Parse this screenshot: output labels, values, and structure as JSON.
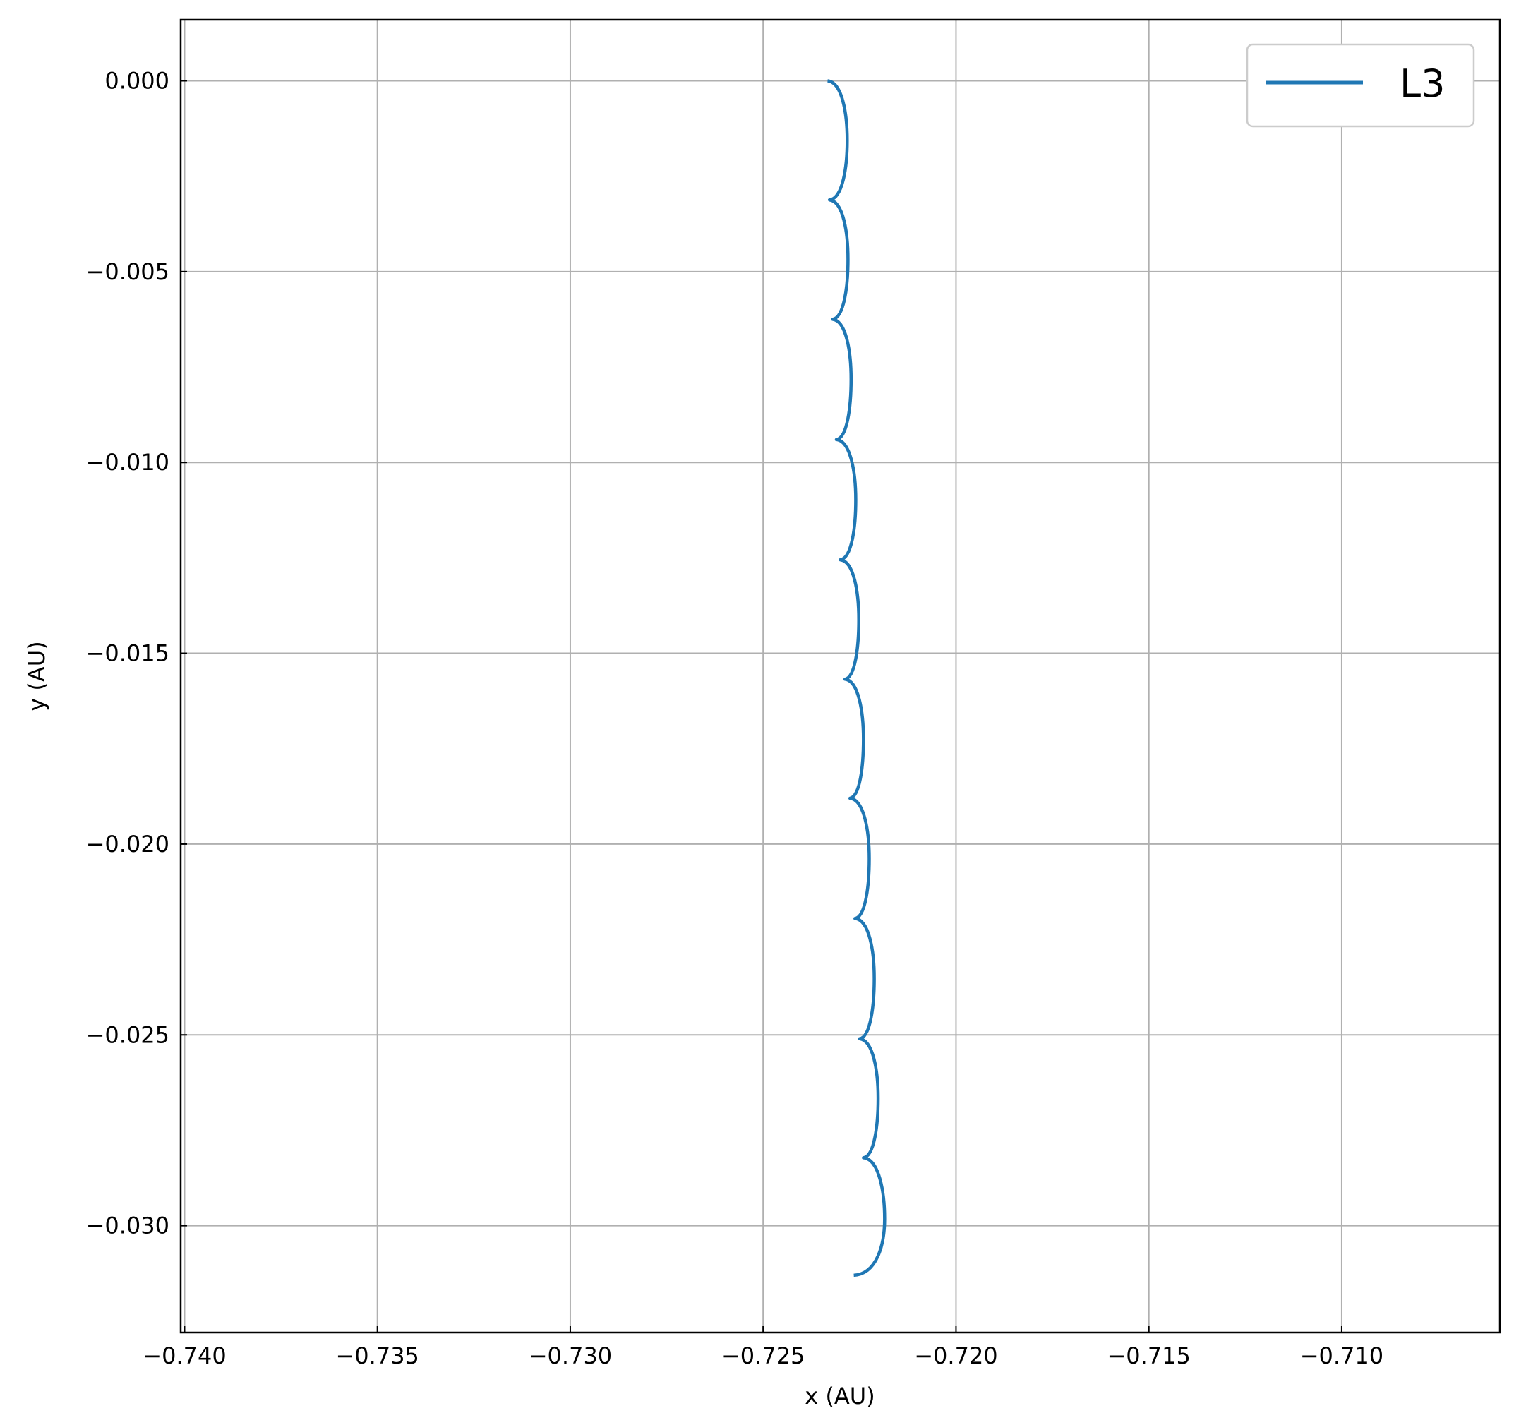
{
  "chart_data": {
    "type": "line",
    "title": "",
    "xlabel": "x (AU)",
    "ylabel": "y (AU)",
    "xlim": [
      -0.7401,
      -0.7059
    ],
    "ylim": [
      -0.0328,
      0.0016
    ],
    "x_ticks": [
      -0.74,
      -0.735,
      -0.73,
      -0.725,
      -0.72,
      -0.715,
      -0.71
    ],
    "x_tick_labels": [
      "−0.740",
      "−0.735",
      "−0.730",
      "−0.725",
      "−0.720",
      "−0.715",
      "−0.710"
    ],
    "y_ticks": [
      0.0,
      -0.005,
      -0.01,
      -0.015,
      -0.02,
      -0.025,
      -0.03
    ],
    "y_tick_labels": [
      "0.000",
      "−0.005",
      "−0.010",
      "−0.015",
      "−0.020",
      "−0.025",
      "−0.030"
    ],
    "grid": true,
    "legend_position": "top-right",
    "series": [
      {
        "name": "L3",
        "color": "#1f77b4",
        "cusps": [
          [
            -0.72333,
            0.0
          ],
          [
            -0.72328,
            -0.00312
          ],
          [
            -0.7232,
            -0.00625
          ],
          [
            -0.7231,
            -0.0094
          ],
          [
            -0.723,
            -0.01255
          ],
          [
            -0.72288,
            -0.01568
          ],
          [
            -0.72275,
            -0.0188
          ],
          [
            -0.72262,
            -0.02195
          ],
          [
            -0.7225,
            -0.0251
          ],
          [
            -0.7224,
            -0.02822
          ],
          [
            -0.72265,
            -0.0313
          ]
        ],
        "bulges": [
          [
            -0.72282,
            -0.00156
          ],
          [
            -0.7228,
            -0.00468
          ],
          [
            -0.72272,
            -0.00782
          ],
          [
            -0.7226,
            -0.01098
          ],
          [
            -0.72252,
            -0.01412
          ],
          [
            -0.7224,
            -0.01725
          ],
          [
            -0.72225,
            -0.02038
          ],
          [
            -0.72212,
            -0.02352
          ],
          [
            -0.72202,
            -0.02666
          ],
          [
            -0.72185,
            -0.02982
          ]
        ]
      }
    ]
  }
}
